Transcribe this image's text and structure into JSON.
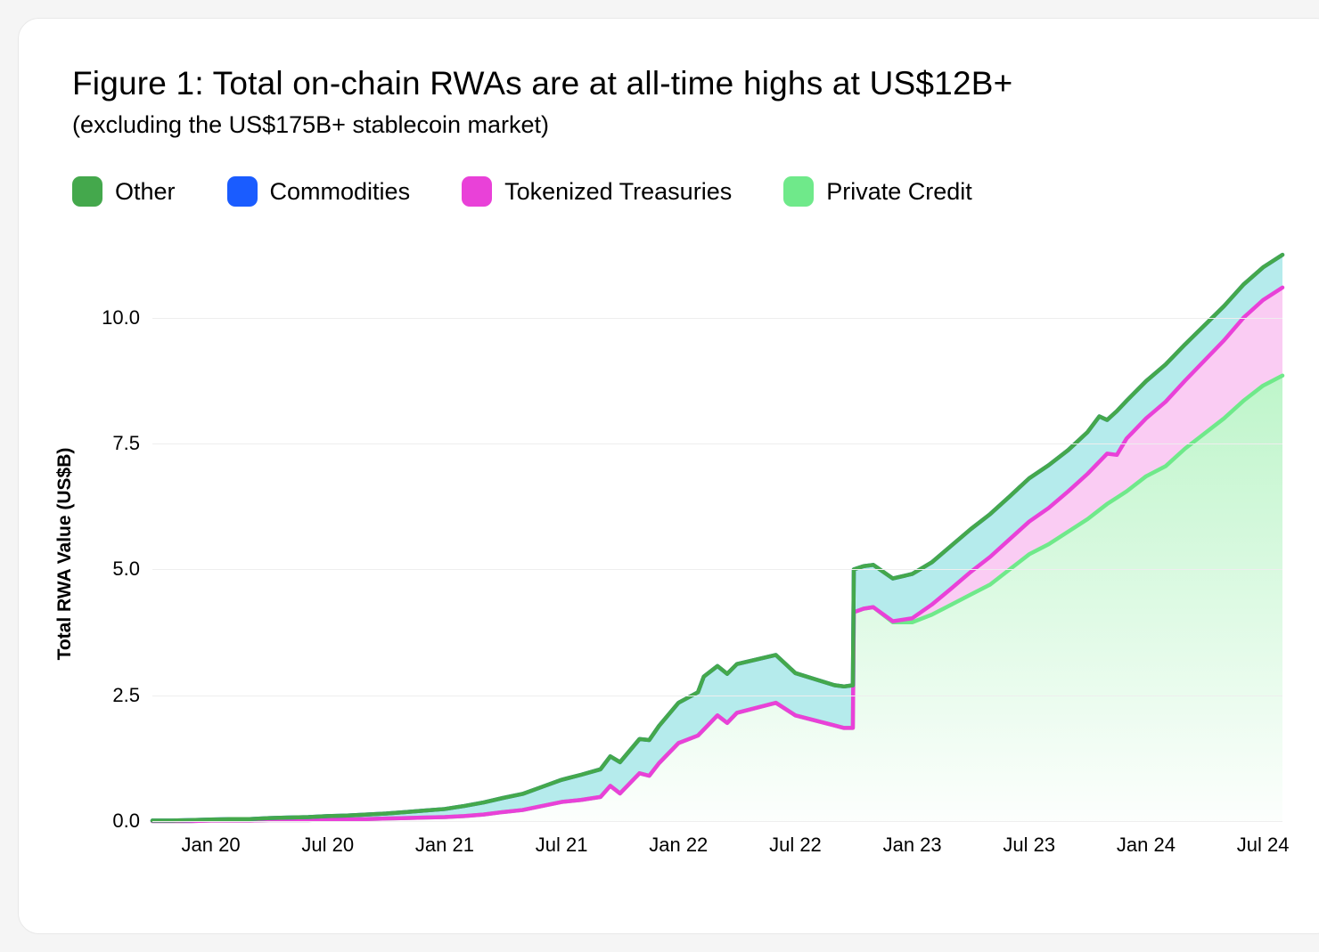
{
  "title": "Figure 1: Total on-chain RWAs are at all-time highs at US$12B+",
  "subtitle": "(excluding the US$175B+ stablecoin market)",
  "ylabel": "Total RWA Value (US$B)",
  "legend": [
    {
      "label": "Other",
      "color": "#44a84c"
    },
    {
      "label": "Commodities",
      "color": "#1a5cff"
    },
    {
      "label": "Tokenized Treasuries",
      "color": "#e941d8"
    },
    {
      "label": "Private Credit",
      "color": "#6fe98a"
    }
  ],
  "chart": {
    "type": "stacked-area",
    "background_color": "#ffffff",
    "grid_color": "#eeeeee",
    "ylim": [
      0,
      11.5
    ],
    "yticks": [
      0.0,
      2.5,
      5.0,
      7.5,
      10.0
    ],
    "ytick_labels": [
      "0.0",
      "2.5",
      "5.0",
      "7.5",
      "10.0"
    ],
    "x_categories": [
      "Jan 20",
      "Jul 20",
      "Jan 21",
      "Jul 21",
      "Jan 22",
      "Jul 22",
      "Jan 23",
      "Jul 23",
      "Jan 24",
      "Jul 24"
    ],
    "x_range": [
      0,
      58
    ],
    "x_tick_positions": [
      3,
      9,
      15,
      21,
      27,
      33,
      39,
      45,
      51,
      57
    ],
    "line_width": 4.5,
    "fills": {
      "private_credit_gradient": [
        "rgba(111,233,138,0.45)",
        "rgba(111,233,138,0.02)"
      ],
      "treasuries_fill": "rgba(247,176,237,0.65)",
      "commodities_fill": "rgba(149,226,228,0.70)"
    },
    "series": {
      "private_credit": {
        "color": "#6fe98a",
        "data": [
          [
            0,
            0.0
          ],
          [
            1,
            0.0
          ],
          [
            2,
            0.0
          ],
          [
            3,
            0.01
          ],
          [
            4,
            0.01
          ],
          [
            5,
            0.01
          ],
          [
            6,
            0.02
          ],
          [
            7,
            0.02
          ],
          [
            8,
            0.02
          ],
          [
            9,
            0.03
          ],
          [
            10,
            0.03
          ],
          [
            11,
            0.04
          ],
          [
            12,
            0.05
          ],
          [
            13,
            0.06
          ],
          [
            14,
            0.07
          ],
          [
            15,
            0.08
          ],
          [
            16,
            0.1
          ],
          [
            17,
            0.13
          ],
          [
            18,
            0.18
          ],
          [
            19,
            0.22
          ],
          [
            20,
            0.3
          ],
          [
            21,
            0.38
          ],
          [
            22,
            0.42
          ],
          [
            23,
            0.48
          ],
          [
            23.5,
            0.7
          ],
          [
            24,
            0.55
          ],
          [
            25,
            0.95
          ],
          [
            25.5,
            0.9
          ],
          [
            26,
            1.15
          ],
          [
            27,
            1.55
          ],
          [
            28,
            1.7
          ],
          [
            29,
            2.1
          ],
          [
            29.5,
            1.95
          ],
          [
            30,
            2.15
          ],
          [
            31,
            2.25
          ],
          [
            32,
            2.35
          ],
          [
            33,
            2.1
          ],
          [
            34,
            2.0
          ],
          [
            35,
            1.9
          ],
          [
            35.5,
            1.85
          ],
          [
            35.95,
            1.85
          ],
          [
            36,
            4.15
          ],
          [
            36.5,
            4.22
          ],
          [
            37,
            4.25
          ],
          [
            38,
            3.95
          ],
          [
            39,
            3.95
          ],
          [
            40,
            4.1
          ],
          [
            41,
            4.3
          ],
          [
            42,
            4.5
          ],
          [
            43,
            4.7
          ],
          [
            44,
            5.0
          ],
          [
            45,
            5.3
          ],
          [
            46,
            5.5
          ],
          [
            47,
            5.75
          ],
          [
            48,
            6.0
          ],
          [
            49,
            6.3
          ],
          [
            50,
            6.55
          ],
          [
            51,
            6.85
          ],
          [
            52,
            7.05
          ],
          [
            53,
            7.4
          ],
          [
            54,
            7.7
          ],
          [
            55,
            8.0
          ],
          [
            56,
            8.35
          ],
          [
            57,
            8.65
          ],
          [
            58,
            8.85
          ]
        ]
      },
      "tokenized_treasuries": {
        "color": "#e941d8",
        "data": [
          [
            0,
            0.0
          ],
          [
            36,
            0.0
          ],
          [
            37,
            0.0
          ],
          [
            38,
            0.02
          ],
          [
            39,
            0.08
          ],
          [
            40,
            0.2
          ],
          [
            41,
            0.32
          ],
          [
            42,
            0.45
          ],
          [
            43,
            0.55
          ],
          [
            44,
            0.6
          ],
          [
            45,
            0.65
          ],
          [
            46,
            0.72
          ],
          [
            47,
            0.8
          ],
          [
            48,
            0.9
          ],
          [
            49,
            1.0
          ],
          [
            49.5,
            0.85
          ],
          [
            50,
            1.05
          ],
          [
            51,
            1.15
          ],
          [
            52,
            1.28
          ],
          [
            53,
            1.35
          ],
          [
            54,
            1.45
          ],
          [
            55,
            1.55
          ],
          [
            56,
            1.65
          ],
          [
            57,
            1.7
          ],
          [
            58,
            1.75
          ]
        ]
      },
      "commodities": {
        "color": "#1a5cff",
        "data": [
          [
            0,
            0.01
          ],
          [
            1,
            0.01
          ],
          [
            2,
            0.02
          ],
          [
            3,
            0.02
          ],
          [
            4,
            0.03
          ],
          [
            5,
            0.03
          ],
          [
            6,
            0.04
          ],
          [
            7,
            0.05
          ],
          [
            8,
            0.06
          ],
          [
            9,
            0.07
          ],
          [
            10,
            0.08
          ],
          [
            11,
            0.09
          ],
          [
            12,
            0.1
          ],
          [
            13,
            0.12
          ],
          [
            14,
            0.14
          ],
          [
            15,
            0.16
          ],
          [
            16,
            0.2
          ],
          [
            17,
            0.24
          ],
          [
            18,
            0.28
          ],
          [
            19,
            0.32
          ],
          [
            20,
            0.38
          ],
          [
            21,
            0.44
          ],
          [
            22,
            0.5
          ],
          [
            23,
            0.55
          ],
          [
            24,
            0.62
          ],
          [
            25,
            0.68
          ],
          [
            26,
            0.74
          ],
          [
            27,
            0.8
          ],
          [
            28,
            0.86
          ],
          [
            28.3,
            1.05
          ],
          [
            29,
            0.98
          ],
          [
            30,
            0.97
          ],
          [
            31,
            0.96
          ],
          [
            32,
            0.95
          ],
          [
            33,
            0.84
          ],
          [
            34,
            0.82
          ],
          [
            35,
            0.8
          ],
          [
            36,
            0.85
          ],
          [
            37,
            0.84
          ],
          [
            38,
            0.85
          ],
          [
            39,
            0.88
          ],
          [
            40,
            0.84
          ],
          [
            41,
            0.85
          ],
          [
            42,
            0.85
          ],
          [
            43,
            0.85
          ],
          [
            44,
            0.85
          ],
          [
            45,
            0.86
          ],
          [
            46,
            0.85
          ],
          [
            47,
            0.82
          ],
          [
            48,
            0.83
          ],
          [
            48.6,
            0.9
          ],
          [
            49,
            0.67
          ],
          [
            49.5,
            0.87
          ],
          [
            50,
            0.75
          ],
          [
            51,
            0.74
          ],
          [
            52,
            0.74
          ],
          [
            53,
            0.72
          ],
          [
            54,
            0.7
          ],
          [
            55,
            0.68
          ],
          [
            56,
            0.66
          ],
          [
            57,
            0.65
          ],
          [
            58,
            0.65
          ]
        ]
      },
      "other": {
        "color": "#44a84c",
        "data": [
          [
            0,
            0.0
          ],
          [
            1,
            0.0
          ],
          [
            2,
            0.0
          ],
          [
            3,
            0.0
          ],
          [
            4,
            0.0
          ],
          [
            5,
            0.0
          ],
          [
            6,
            0.0
          ],
          [
            7,
            0.0
          ],
          [
            8,
            0.0
          ],
          [
            9,
            0.0
          ],
          [
            10,
            0.0
          ],
          [
            11,
            0.0
          ],
          [
            12,
            0.0
          ],
          [
            13,
            0.0
          ],
          [
            14,
            0.0
          ],
          [
            15,
            0.0
          ],
          [
            16,
            0.0
          ],
          [
            17,
            0.0
          ],
          [
            18,
            0.0
          ],
          [
            19,
            0.0
          ],
          [
            20,
            0.0
          ],
          [
            21,
            0.0
          ],
          [
            22,
            0.0
          ],
          [
            23,
            0.0
          ],
          [
            24,
            0.0
          ],
          [
            25,
            0.0
          ],
          [
            26,
            0.0
          ],
          [
            27,
            0.0
          ],
          [
            28,
            0.0
          ],
          [
            29,
            0.0
          ],
          [
            30,
            0.0
          ],
          [
            31,
            0.0
          ],
          [
            32,
            0.0
          ],
          [
            33,
            0.0
          ],
          [
            34,
            0.0
          ],
          [
            35,
            0.0
          ],
          [
            36,
            0.0
          ],
          [
            37,
            0.0
          ],
          [
            38,
            0.0
          ],
          [
            39,
            0.0
          ],
          [
            40,
            0.0
          ],
          [
            41,
            0.0
          ],
          [
            42,
            0.0
          ],
          [
            43,
            0.0
          ],
          [
            44,
            0.0
          ],
          [
            45,
            0.0
          ],
          [
            46,
            0.0
          ],
          [
            47,
            0.0
          ],
          [
            48,
            0.0
          ],
          [
            49,
            0.0
          ],
          [
            50,
            0.0
          ],
          [
            51,
            0.0
          ],
          [
            52,
            0.0
          ],
          [
            53,
            0.0
          ],
          [
            54,
            0.0
          ],
          [
            55,
            0.0
          ],
          [
            56,
            0.0
          ],
          [
            57,
            0.0
          ],
          [
            58,
            0.0
          ]
        ]
      }
    },
    "stack_order": [
      "private_credit",
      "tokenized_treasuries",
      "commodities",
      "other"
    ]
  }
}
